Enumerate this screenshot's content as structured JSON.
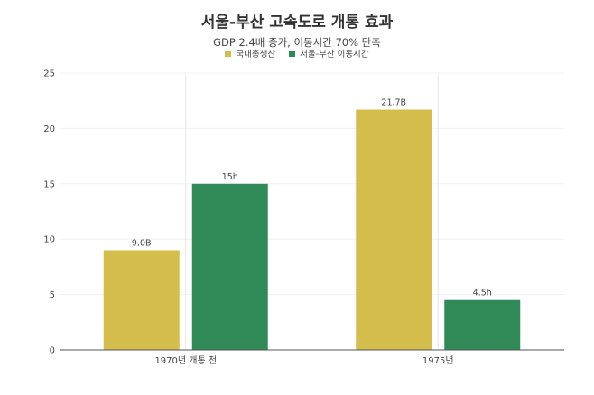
{
  "chart_data": {
    "type": "bar",
    "title": "서울-부산 고속도로 개통 효과",
    "subtitle": "GDP 2.4배 증가, 이동시간 70% 단축",
    "categories": [
      "1970년 개통 전",
      "1975년"
    ],
    "series": [
      {
        "name": "국내총생산",
        "values": [
          9.0,
          21.7
        ],
        "labels": [
          "9.0B",
          "21.7B"
        ],
        "color": "#d4bd4a"
      },
      {
        "name": "서울-부산 이동시간",
        "values": [
          15,
          4.5
        ],
        "labels": [
          "15h",
          "4.5h"
        ],
        "color": "#2f8a58"
      }
    ],
    "ylim": [
      0,
      25
    ],
    "yticks": [
      0,
      5,
      10,
      15,
      20,
      25
    ],
    "legend_position": "top-center",
    "grid": true
  }
}
